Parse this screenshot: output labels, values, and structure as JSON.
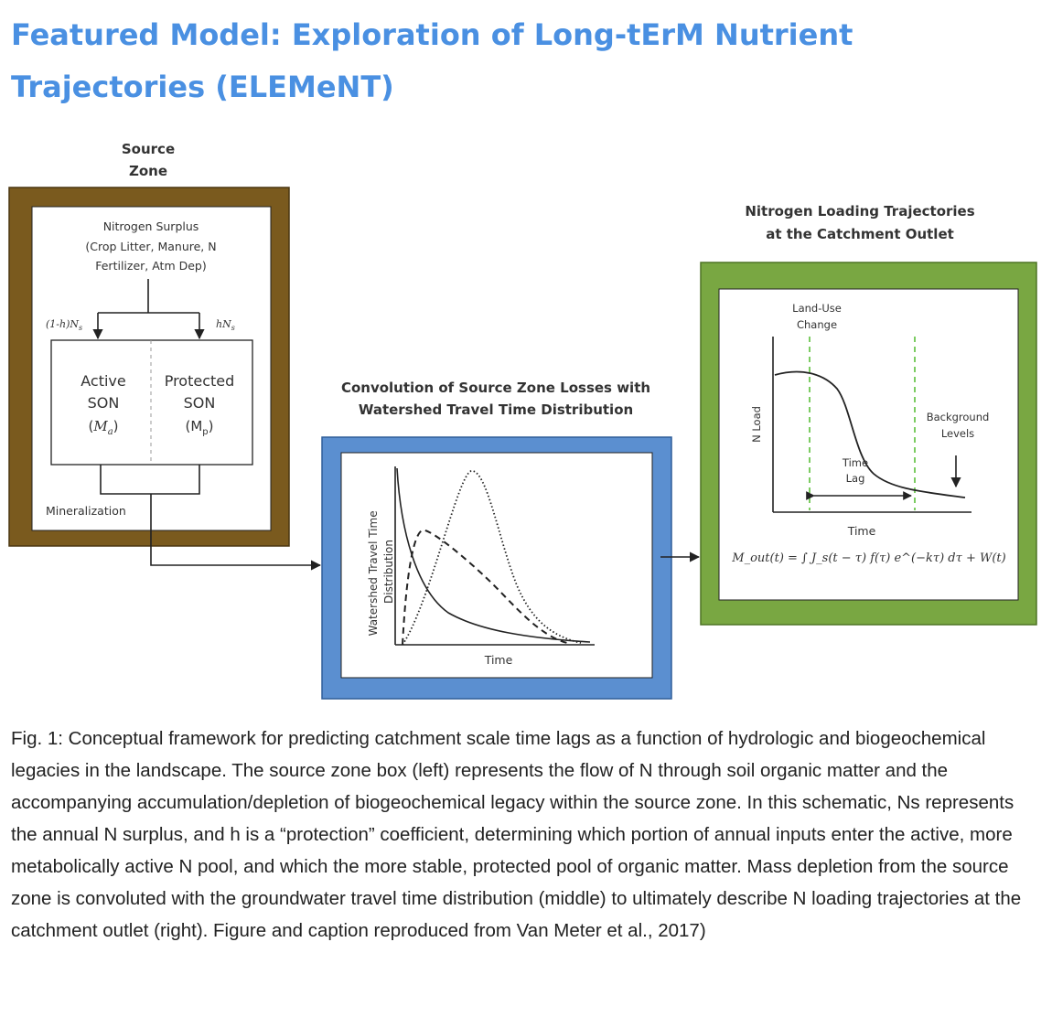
{
  "page": {
    "title_line1": "Featured Model: Exploration of Long-tErM Nutrient",
    "title_line2": "Trajectories (ELEMeNT)"
  },
  "source": {
    "title_line1": "Source",
    "title_line2": "Zone",
    "surplus_line1": "Nitrogen Surplus",
    "surplus_line2": "(Crop Litter, Manure, N",
    "surplus_line3": "Fertilizer, Atm Dep)",
    "left_flow": "(1-h)N",
    "left_flow_sub": "s",
    "right_flow": "hN",
    "right_flow_sub": "s",
    "active_line1": "Active",
    "active_line2": "SON",
    "active_sym": "M",
    "active_sub": "a",
    "protected_line1": "Protected",
    "protected_line2": "SON",
    "protected_sym": "M",
    "protected_sub": "p",
    "mineralization": "Mineralization"
  },
  "convolution": {
    "title_line1": "Convolution of Source Zone Losses with",
    "title_line2": "Watershed Travel Time Distribution",
    "ylabel_line1": "Watershed Travel Time",
    "ylabel_line2": "Distribution",
    "xlabel": "Time"
  },
  "loading": {
    "title_line1": "Nitrogen Loading Trajectories",
    "title_line2": "at the Catchment Outlet",
    "landuse_line1": "Land-Use",
    "landuse_line2": "Change",
    "ylabel": "N Load",
    "background_line1": "Background",
    "background_line2": "Levels",
    "timelag_line1": "Time",
    "timelag_line2": "Lag",
    "xlabel": "Time",
    "equation": "M_out(t) = ∫ J_s(t − τ) f(τ) e^(−kτ) dτ + W(t)"
  },
  "colors": {
    "title": "#4a90e2",
    "source_frame": "#7a5a1e",
    "convolution_frame": "#5b8fd0",
    "loading_frame": "#79a742",
    "guide_line": "#5cbf3c"
  },
  "caption": "Fig. 1: Conceptual framework for predicting catchment scale time lags as a function of hydrologic and biogeochemical legacies in the landscape. The source zone box (left) represents the flow of N through soil organic matter and the accompanying accumulation/depletion of biogeochemical legacy within the source zone. In this schematic, Ns represents the annual N surplus, and h is a “protection” coefficient, determining which portion of annual inputs enter the active, more metabolically active N pool, and which the more stable, protected pool of organic matter. Mass depletion from the source zone is convoluted with the groundwater travel time distribution (middle) to ultimately describe N loading trajectories at the catchment outlet (right).  Figure and caption reproduced from Van Meter et al., 2017)"
}
